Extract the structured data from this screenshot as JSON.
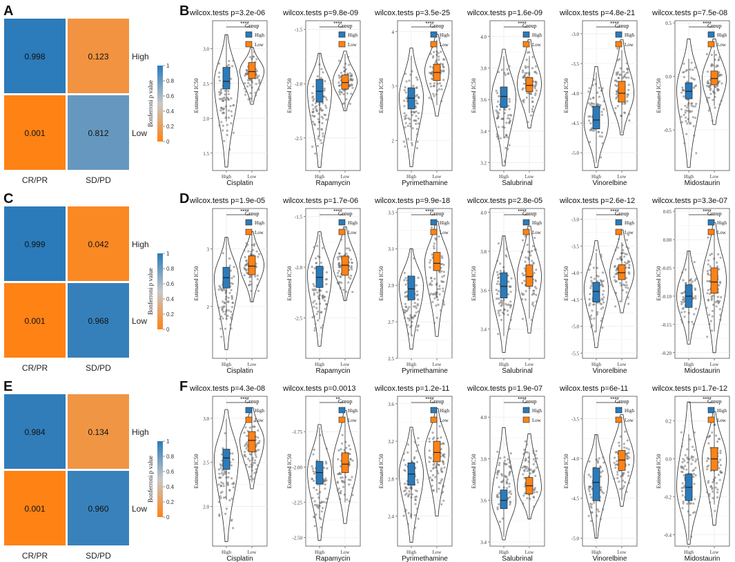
{
  "figure": {
    "panel_letters": [
      "A",
      "B",
      "C",
      "D",
      "E",
      "F"
    ]
  },
  "colors": {
    "high": "#2b7bba",
    "low": "#ff8214",
    "grid": "#ebebeb",
    "dot": "#6f6f6f"
  },
  "chart_data": [
    {
      "type": "heatmap",
      "panel": "A",
      "rows": [
        "High",
        "Low"
      ],
      "cols": [
        "CR/PR",
        "SD/PD"
      ],
      "values": [
        [
          0.998,
          0.123
        ],
        [
          0.001,
          0.812
        ]
      ],
      "legend_title": "Bonferroni p value",
      "legend_ticks": [
        "1",
        "0.8",
        "0.6",
        "0.4",
        "0.2",
        "0"
      ]
    },
    {
      "type": "heatmap",
      "panel": "C",
      "rows": [
        "High",
        "Low"
      ],
      "cols": [
        "CR/PR",
        "SD/PD"
      ],
      "values": [
        [
          0.999,
          0.042
        ],
        [
          0.001,
          0.968
        ]
      ],
      "legend_title": "Bonferroni p value",
      "legend_ticks": [
        "1",
        "0.8",
        "0.6",
        "0.4",
        "0.2",
        "0"
      ]
    },
    {
      "type": "heatmap",
      "panel": "E",
      "rows": [
        "High",
        "Low"
      ],
      "cols": [
        "CR/PR",
        "SD/PD"
      ],
      "values": [
        [
          0.984,
          0.134
        ],
        [
          0.001,
          0.96
        ]
      ],
      "legend_title": "Bonferroni p value",
      "legend_ticks": [
        "1",
        "0.8",
        "0.6",
        "0.4",
        "0.2",
        "0"
      ]
    },
    {
      "type": "violin",
      "panel": "B",
      "ylabel": "Estimated IC50",
      "legend_title": "Group",
      "groups": [
        "High",
        "Low"
      ],
      "plots": [
        {
          "drug": "Cisplatin",
          "title": "wilcox.tests p=3.2e-06",
          "sig": "****",
          "ylim": [
            1.25,
            3.4
          ],
          "ticks": [
            1.5,
            2.0,
            2.5,
            3.0
          ],
          "tick_labels": [
            "1.5",
            "2.0",
            "2.5",
            "3.0"
          ],
          "high": {
            "median": 2.53,
            "q1": 2.42,
            "q3": 2.73,
            "min": 1.3,
            "max": 3.2,
            "mode": 2.52
          },
          "low": {
            "median": 2.67,
            "q1": 2.57,
            "q3": 2.8,
            "min": 2.2,
            "max": 3.02,
            "mode": 2.68
          }
        },
        {
          "drug": "Rapamycin",
          "title": "wilcox.tests p=9.8e-09",
          "sig": "****",
          "ylim": [
            -2.8,
            -1.42
          ],
          "ticks": [
            -2.5,
            -2.0,
            -1.5
          ],
          "tick_labels": [
            "-2.5",
            "-2.0",
            "-1.5"
          ],
          "high": {
            "median": -2.07,
            "q1": -2.17,
            "q3": -1.96,
            "min": -2.77,
            "max": -1.72,
            "mode": -2.05
          },
          "low": {
            "median": -1.99,
            "q1": -2.05,
            "q3": -1.92,
            "min": -2.25,
            "max": -1.7,
            "mode": -1.98
          }
        },
        {
          "drug": "Pyrimethamine",
          "title": "wilcox.tests p=3.5e-25",
          "sig": "****",
          "ylim": [
            1.45,
            4.2
          ],
          "ticks": [
            2,
            3,
            4
          ],
          "tick_labels": [
            "2",
            "3",
            "4"
          ],
          "high": {
            "median": 2.78,
            "q1": 2.58,
            "q3": 2.97,
            "min": 1.52,
            "max": 3.7,
            "mode": 2.8
          },
          "low": {
            "median": 3.25,
            "q1": 3.1,
            "q3": 3.4,
            "min": 2.45,
            "max": 3.95,
            "mode": 3.28
          }
        },
        {
          "drug": "Salubrinal",
          "title": "wilcox.tests p=1.6e-09",
          "sig": "****",
          "ylim": [
            3.15,
            4.1
          ],
          "ticks": [
            3.2,
            3.4,
            3.6,
            3.8,
            4.0
          ],
          "tick_labels": [
            "3.2",
            "3.4",
            "3.6",
            "3.8",
            "4.0"
          ],
          "high": {
            "median": 3.62,
            "q1": 3.55,
            "q3": 3.68,
            "min": 3.18,
            "max": 3.92,
            "mode": 3.62
          },
          "low": {
            "median": 3.69,
            "q1": 3.65,
            "q3": 3.74,
            "min": 3.42,
            "max": 3.98,
            "mode": 3.7
          }
        },
        {
          "drug": "Vinorelbine",
          "title": "wilcox.tests p=4.8e-21",
          "sig": "****",
          "ylim": [
            -5.3,
            -2.78
          ],
          "ticks": [
            -5.0,
            -4.5,
            -4.0,
            -3.5,
            -3.0
          ],
          "tick_labels": [
            "-5.0",
            "-4.5",
            "-4.0",
            "-3.5",
            "-3.0"
          ],
          "high": {
            "median": -4.45,
            "q1": -4.6,
            "q3": -4.22,
            "min": -5.25,
            "max": -3.55,
            "mode": -4.5
          },
          "low": {
            "median": -4.0,
            "q1": -4.15,
            "q3": -3.8,
            "min": -4.7,
            "max": -3.1,
            "mode": -4.0
          }
        },
        {
          "drug": "Midostaurin",
          "title": "wilcox.tests p=7.5e-08",
          "sig": "****",
          "ylim": [
            -0.88,
            0.52
          ],
          "ticks": [
            -0.5,
            0.0,
            0.5
          ],
          "tick_labels": [
            "-0.5",
            "0.0",
            "0.5"
          ],
          "high": {
            "median": -0.14,
            "q1": -0.21,
            "q3": -0.06,
            "min": -0.85,
            "max": 0.35,
            "mode": -0.12
          },
          "low": {
            "median": -0.02,
            "q1": -0.08,
            "q3": 0.05,
            "min": -0.45,
            "max": 0.35,
            "mode": -0.02
          }
        }
      ]
    },
    {
      "type": "violin",
      "panel": "D",
      "ylabel": "Estimated IC50",
      "legend_title": "Group",
      "groups": [
        "High",
        "Low"
      ],
      "plots": [
        {
          "drug": "Cisplatin",
          "title": "wilcox.tests p=1.9e-05",
          "sig": "****",
          "ylim": [
            1.1,
            3.7
          ],
          "ticks": [
            2,
            3
          ],
          "tick_labels": [
            "2",
            "3"
          ],
          "high": {
            "median": 2.5,
            "q1": 2.32,
            "q3": 2.68,
            "min": 1.25,
            "max": 3.2,
            "mode": 2.5
          },
          "low": {
            "median": 2.7,
            "q1": 2.55,
            "q3": 2.88,
            "min": 2.08,
            "max": 3.3,
            "mode": 2.72
          }
        },
        {
          "drug": "Rapamycin",
          "title": "wilcox.tests p=1.7e-06",
          "sig": "****",
          "ylim": [
            -2.9,
            -1.42
          ],
          "ticks": [
            -2.5,
            -2.0,
            -1.5
          ],
          "tick_labels": [
            "-2.5",
            "-2.0",
            "-1.5"
          ],
          "high": {
            "median": -2.1,
            "q1": -2.2,
            "q3": -1.99,
            "min": -2.78,
            "max": -1.65,
            "mode": -2.07
          },
          "low": {
            "median": -1.98,
            "q1": -2.08,
            "q3": -1.89,
            "min": -2.33,
            "max": -1.6,
            "mode": -1.98
          }
        },
        {
          "drug": "Pyrimethamine",
          "title": "wilcox.tests p=9.9e-18",
          "sig": "****",
          "ylim": [
            2.5,
            3.32
          ],
          "ticks": [
            2.5,
            2.7,
            2.9,
            3.1,
            3.3
          ],
          "tick_labels": [
            "2.5",
            "2.7",
            "2.9",
            "3.1",
            "3.3"
          ],
          "high": {
            "median": 2.88,
            "q1": 2.82,
            "q3": 2.95,
            "min": 2.55,
            "max": 3.1,
            "mode": 2.9
          },
          "low": {
            "median": 3.02,
            "q1": 2.98,
            "q3": 3.08,
            "min": 2.62,
            "max": 3.25,
            "mode": 3.03
          }
        },
        {
          "drug": "Salubrinal",
          "title": "wilcox.tests p=2.8e-05",
          "sig": "****",
          "ylim": [
            3.25,
            4.02
          ],
          "ticks": [
            3.4,
            3.6,
            3.8,
            4.0
          ],
          "tick_labels": [
            "3.4",
            "3.6",
            "3.8",
            "4.0"
          ],
          "high": {
            "median": 3.62,
            "q1": 3.56,
            "q3": 3.69,
            "min": 3.28,
            "max": 3.88,
            "mode": 3.62
          },
          "low": {
            "median": 3.67,
            "q1": 3.62,
            "q3": 3.73,
            "min": 3.38,
            "max": 3.93,
            "mode": 3.67
          }
        },
        {
          "drug": "Vinorelbine",
          "title": "wilcox.tests p=2.6e-12",
          "sig": "****",
          "ylim": [
            -5.6,
            -2.8
          ],
          "ticks": [
            -5.5,
            -5.0,
            -4.5,
            -4.0,
            -3.5,
            -3.0
          ],
          "tick_labels": [
            "-5.5",
            "-5.0",
            "-4.5",
            "-4.0",
            "-3.5",
            "-3.0"
          ],
          "high": {
            "median": -4.35,
            "q1": -4.55,
            "q3": -4.18,
            "min": -5.4,
            "max": -3.4,
            "mode": -4.3
          },
          "low": {
            "median": -4.0,
            "q1": -4.13,
            "q3": -3.85,
            "min": -4.75,
            "max": -3.2,
            "mode": -4.0
          }
        },
        {
          "drug": "Midostaurin",
          "title": "wilcox.tests p=3.3e-07",
          "sig": "****",
          "ylim": [
            -0.21,
            0.055
          ],
          "ticks": [
            -0.2,
            -0.15,
            -0.1,
            -0.05,
            0.0,
            0.05
          ],
          "tick_labels": [
            "-0.20",
            "-0.15",
            "-0.10",
            "-0.05",
            "0.00",
            "0.05"
          ],
          "high": {
            "median": -0.1,
            "q1": -0.12,
            "q3": -0.08,
            "min": -0.185,
            "max": -0.02,
            "mode": -0.1
          },
          "low": {
            "median": -0.075,
            "q1": -0.095,
            "q3": -0.05,
            "min": -0.2,
            "max": 0.03,
            "mode": -0.07
          }
        }
      ]
    },
    {
      "type": "violin",
      "panel": "F",
      "ylabel": "Estimated IC50",
      "legend_title": "Group",
      "groups": [
        "High",
        "Low"
      ],
      "plots": [
        {
          "drug": "Cisplatin",
          "title": "wilcox.tests p=4.3e-08",
          "sig": "****",
          "ylim": [
            1.55,
            3.25
          ],
          "ticks": [
            2.0,
            2.5,
            3.0
          ],
          "tick_labels": [
            "2.0",
            "2.5",
            "3.0"
          ],
          "high": {
            "median": 2.55,
            "q1": 2.42,
            "q3": 2.65,
            "min": 1.6,
            "max": 3.1,
            "mode": 2.55
          },
          "low": {
            "median": 2.75,
            "q1": 2.62,
            "q3": 2.85,
            "min": 2.2,
            "max": 3.12,
            "mode": 2.75
          }
        },
        {
          "drug": "Rapamycin",
          "title": "wilcox.tests p=0.0013",
          "sig": "**",
          "ylim": [
            -2.56,
            -1.5
          ],
          "ticks": [
            -2.5,
            -2.25,
            -2.0,
            -1.75
          ],
          "tick_labels": [
            "-2.50",
            "-2.25",
            "-2.00",
            "-1.75"
          ],
          "high": {
            "median": -2.04,
            "q1": -2.12,
            "q3": -1.96,
            "min": -2.52,
            "max": -1.7,
            "mode": -2.03
          },
          "low": {
            "median": -1.98,
            "q1": -2.04,
            "q3": -1.9,
            "min": -2.4,
            "max": -1.6,
            "mode": -1.97
          }
        },
        {
          "drug": "Pyrimethamine",
          "title": "wilcox.tests p=1.2e-11",
          "sig": "****",
          "ylim": [
            2.08,
            3.68
          ],
          "ticks": [
            2.4,
            2.8,
            3.2,
            3.6
          ],
          "tick_labels": [
            "2.4",
            "2.8",
            "3.2",
            "3.6"
          ],
          "high": {
            "median": 2.85,
            "q1": 2.73,
            "q3": 2.97,
            "min": 2.12,
            "max": 3.35,
            "mode": 2.86
          },
          "low": {
            "median": 3.08,
            "q1": 2.98,
            "q3": 3.2,
            "min": 2.4,
            "max": 3.55,
            "mode": 3.1
          }
        },
        {
          "drug": "Salubrinal",
          "title": "wilcox.tests p=1.9e-07",
          "sig": "****",
          "ylim": [
            3.38,
            4.1
          ],
          "ticks": [
            3.4,
            3.6,
            3.8,
            4.0
          ],
          "tick_labels": [
            "3.4",
            "3.6",
            "3.8",
            "4.0"
          ],
          "high": {
            "median": 3.6,
            "q1": 3.56,
            "q3": 3.65,
            "min": 3.41,
            "max": 3.95,
            "mode": 3.6
          },
          "low": {
            "median": 3.67,
            "q1": 3.63,
            "q3": 3.71,
            "min": 3.51,
            "max": 3.92,
            "mode": 3.66
          }
        },
        {
          "drug": "Vinorelbine",
          "title": "wilcox.tests p=6e-11",
          "sig": "****",
          "ylim": [
            -5.1,
            -3.22
          ],
          "ticks": [
            -5.0,
            -4.5,
            -4.0,
            -3.5
          ],
          "tick_labels": [
            "-5.0",
            "-4.5",
            "-4.0",
            "-3.5"
          ],
          "high": {
            "median": -4.3,
            "q1": -4.53,
            "q3": -4.12,
            "min": -5.0,
            "max": -3.7,
            "mode": -4.25
          },
          "low": {
            "median": -4.02,
            "q1": -4.15,
            "q3": -3.9,
            "min": -4.6,
            "max": -3.45,
            "mode": -4.0
          }
        },
        {
          "drug": "Midostaurin",
          "title": "wilcox.tests p=1.7e-12",
          "sig": "****",
          "ylim": [
            -0.46,
            0.33
          ],
          "ticks": [
            -0.4,
            -0.2,
            0.0,
            0.2
          ],
          "tick_labels": [
            "-0.4",
            "-0.2",
            "0.0",
            "0.2"
          ],
          "high": {
            "median": -0.15,
            "q1": -0.22,
            "q3": -0.08,
            "min": -0.45,
            "max": 0.3,
            "mode": -0.15
          },
          "low": {
            "median": 0.0,
            "q1": -0.06,
            "q3": 0.06,
            "min": -0.35,
            "max": 0.25,
            "mode": 0.0
          }
        }
      ]
    }
  ]
}
